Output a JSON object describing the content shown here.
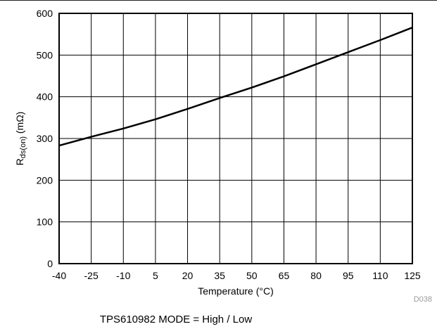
{
  "chart_data": {
    "type": "line",
    "xlabel": "Temperature (°C)",
    "ylabel_main": "R",
    "ylabel_sub": "ds(on)",
    "ylabel_unit": " (mΩ)",
    "x_ticks": [
      "-40",
      "-25",
      "-10",
      "5",
      "20",
      "35",
      "50",
      "65",
      "80",
      "95",
      "110",
      "125"
    ],
    "y_ticks": [
      "0",
      "100",
      "200",
      "300",
      "400",
      "500",
      "600"
    ],
    "xlim": [
      -40,
      125
    ],
    "ylim": [
      0,
      600
    ],
    "grid": true,
    "series": [
      {
        "color": "#000000",
        "x": [
          -40,
          -25,
          -10,
          5,
          20,
          35,
          50,
          65,
          80,
          95,
          110,
          125
        ],
        "y": [
          283,
          304,
          324,
          346,
          371,
          397,
          422,
          449,
          478,
          507,
          536,
          566
        ]
      }
    ],
    "figure_code": "D038"
  },
  "caption": "TPS610982  MODE = High / Low"
}
